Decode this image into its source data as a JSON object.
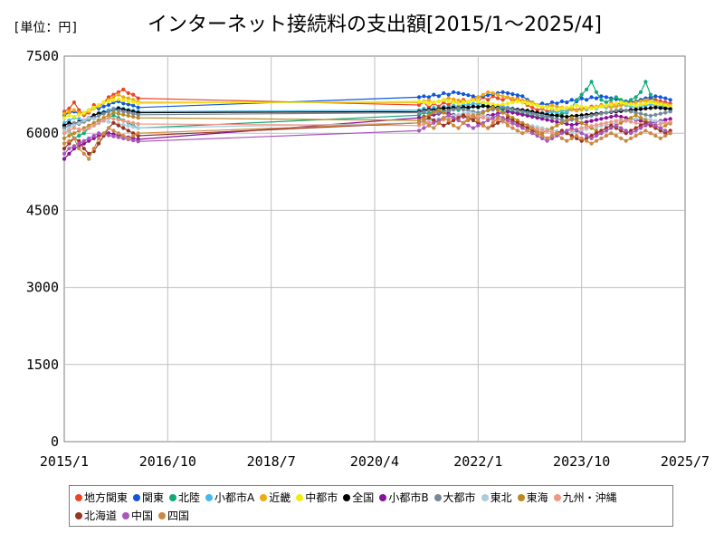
{
  "header": {
    "unit_label": "[単位：円]",
    "title": "インターネット接続料の支出額[2015/1～2025/4]"
  },
  "chart_data": {
    "type": "line",
    "title": "インターネット接続料の支出額[2015/1～2025/4]",
    "unit": "[単位：円]",
    "xlabel": "",
    "ylabel": "",
    "ylim": [
      0,
      7500
    ],
    "yticks": [
      "0",
      "1500",
      "3000",
      "4500",
      "6000",
      "7500"
    ],
    "xticks": [
      "2015/1",
      "2016/10",
      "2018/7",
      "2020/4",
      "2022/1",
      "2023/10",
      "2025/7"
    ],
    "grid": true,
    "legend_position": "bottom",
    "segments": [
      {
        "from": "2015/1",
        "to": "2016/4",
        "months": 16
      },
      {
        "from": "2021/1",
        "to": "2025/4",
        "months": 52
      }
    ],
    "series": [
      {
        "name": "地方関東",
        "color": "#ee4422",
        "seg1": [
          6420,
          6480,
          6600,
          6450,
          6350,
          6400,
          6550,
          6500,
          6600,
          6700,
          6750,
          6800,
          6850,
          6780,
          6750,
          6680
        ],
        "seg2": [
          6550,
          6600,
          6500,
          6580,
          6520,
          6600,
          6550,
          6620,
          6580,
          6650,
          6600,
          6680,
          6620,
          6700,
          6650,
          6720,
          6680,
          6650,
          6700,
          6620,
          6680,
          6600,
          6550,
          6500,
          6450,
          6480,
          6420,
          6450,
          6400,
          6450,
          6420,
          6480,
          6450,
          6500,
          6480,
          6520,
          6500,
          6550,
          6520,
          6580,
          6550,
          6600,
          6580,
          6620,
          6600,
          6650,
          6620,
          6680,
          6650,
          6620,
          6600,
          6580
        ]
      },
      {
        "name": "関東",
        "color": "#1155dd",
        "seg1": [
          6350,
          6400,
          6420,
          6380,
          6400,
          6450,
          6500,
          6480,
          6520,
          6550,
          6600,
          6620,
          6580,
          6560,
          6540,
          6500
        ],
        "seg2": [
          6700,
          6720,
          6700,
          6750,
          6720,
          6780,
          6750,
          6800,
          6780,
          6760,
          6740,
          6720,
          6700,
          6720,
          6740,
          6760,
          6780,
          6800,
          6780,
          6760,
          6740,
          6720,
          6650,
          6600,
          6550,
          6580,
          6550,
          6600,
          6580,
          6620,
          6600,
          6650,
          6620,
          6680,
          6650,
          6700,
          6680,
          6720,
          6700,
          6680,
          6660,
          6640,
          6620,
          6600,
          6620,
          6650,
          6680,
          6700,
          6720,
          6700,
          6680,
          6650
        ]
      },
      {
        "name": "北陸",
        "color": "#11aa77",
        "seg1": [
          6000,
          6050,
          5900,
          5950,
          6000,
          6100,
          6150,
          6200,
          6250,
          6300,
          6350,
          6300,
          6250,
          6200,
          6150,
          6100
        ],
        "seg2": [
          6350,
          6400,
          6380,
          6420,
          6400,
          6450,
          6420,
          6480,
          6450,
          6500,
          6480,
          6520,
          6500,
          6550,
          6520,
          6500,
          6480,
          6460,
          6440,
          6420,
          6400,
          6380,
          6360,
          6340,
          6320,
          6300,
          6320,
          6340,
          6360,
          6380,
          6400,
          6500,
          6650,
          6750,
          6850,
          7000,
          6800,
          6650,
          6600,
          6650,
          6700,
          6650,
          6600,
          6650,
          6700,
          6800,
          7000,
          6750,
          6600,
          6550,
          6500,
          6450
        ]
      },
      {
        "name": "小都市A",
        "color": "#44bbee",
        "seg1": [
          6200,
          6250,
          6300,
          6280,
          6250,
          6300,
          6350,
          6400,
          6420,
          6450,
          6480,
          6500,
          6480,
          6460,
          6440,
          6420
        ],
        "seg2": [
          6450,
          6480,
          6460,
          6500,
          6480,
          6520,
          6500,
          6540,
          6520,
          6560,
          6540,
          6580,
          6560,
          6600,
          6580,
          6560,
          6540,
          6520,
          6500,
          6480,
          6460,
          6440,
          6420,
          6400,
          6380,
          6400,
          6380,
          6420,
          6400,
          6440,
          6420,
          6460,
          6440,
          6480,
          6460,
          6500,
          6480,
          6520,
          6500,
          6540,
          6520,
          6560,
          6540,
          6520,
          6500,
          6520,
          6540,
          6560,
          6540,
          6520,
          6500,
          6480
        ]
      },
      {
        "name": "近畿",
        "color": "#eeaa11",
        "seg1": [
          6380,
          6420,
          6450,
          6400,
          6380,
          6420,
          6480,
          6520,
          6600,
          6650,
          6700,
          6750,
          6700,
          6680,
          6650,
          6600
        ],
        "seg2": [
          6600,
          6620,
          6640,
          6600,
          6620,
          6650,
          6680,
          6660,
          6640,
          6620,
          6600,
          6650,
          6700,
          6750,
          6800,
          6780,
          6750,
          6720,
          6700,
          6680,
          6660,
          6640,
          6620,
          6600,
          6550,
          6500,
          6520,
          6540,
          6520,
          6500,
          6480,
          6460,
          6440,
          6460,
          6480,
          6500,
          6520,
          6540,
          6520,
          6500,
          6520,
          6540,
          6560,
          6580,
          6600,
          6620,
          6640,
          6620,
          6600,
          6580,
          6560,
          6540
        ]
      },
      {
        "name": "中都市",
        "color": "#eeee11",
        "seg1": [
          6300,
          6350,
          6320,
          6360,
          6400,
          6450,
          6500,
          6550,
          6600,
          6620,
          6640,
          6660,
          6640,
          6620,
          6600,
          6580
        ],
        "seg2": [
          6620,
          6600,
          6580,
          6600,
          6620,
          6640,
          6620,
          6600,
          6580,
          6600,
          6620,
          6640,
          6620,
          6600,
          6580,
          6560,
          6540,
          6560,
          6580,
          6600,
          6620,
          6600,
          6580,
          6560,
          6540,
          6520,
          6500,
          6480,
          6460,
          6480,
          6500,
          6520,
          6540,
          6520,
          6500,
          6480,
          6500,
          6520,
          6540,
          6560,
          6580,
          6600,
          6580,
          6560,
          6540,
          6560,
          6580,
          6600,
          6580,
          6560,
          6540,
          6520
        ]
      },
      {
        "name": "全国",
        "color": "#000000",
        "seg1": [
          6150,
          6200,
          6180,
          6220,
          6250,
          6300,
          6350,
          6380,
          6400,
          6420,
          6450,
          6480,
          6460,
          6440,
          6420,
          6400
        ],
        "seg2": [
          6420,
          6440,
          6460,
          6450,
          6470,
          6490,
          6480,
          6500,
          6490,
          6510,
          6500,
          6520,
          6510,
          6530,
          6520,
          6510,
          6500,
          6490,
          6480,
          6470,
          6460,
          6450,
          6440,
          6420,
          6400,
          6380,
          6360,
          6350,
          6340,
          6330,
          6320,
          6330,
          6340,
          6350,
          6360,
          6370,
          6380,
          6390,
          6400,
          6410,
          6420,
          6430,
          6440,
          6450,
          6460,
          6470,
          6480,
          6490,
          6500,
          6490,
          6480,
          6470
        ]
      },
      {
        "name": "小都市B",
        "color": "#881199",
        "seg1": [
          5500,
          5600,
          5700,
          5750,
          5800,
          5850,
          5900,
          5950,
          5980,
          6000,
          5980,
          5960,
          5940,
          5920,
          5900,
          5880
        ],
        "seg2": [
          6300,
          6320,
          6340,
          6360,
          6380,
          6400,
          6380,
          6360,
          6340,
          6320,
          6300,
          6280,
          6300,
          6320,
          6340,
          6360,
          6380,
          6400,
          6420,
          6400,
          6380,
          6360,
          6340,
          6320,
          6300,
          6280,
          6260,
          6240,
          6220,
          6200,
          6180,
          6160,
          6180,
          6200,
          6220,
          6240,
          6260,
          6280,
          6300,
          6320,
          6340,
          6320,
          6300,
          6280,
          6260,
          6240,
          6220,
          6200,
          6220,
          6240,
          6260,
          6280
        ]
      },
      {
        "name": "大都市",
        "color": "#778899",
        "seg1": [
          6100,
          6150,
          6200,
          6180,
          6220,
          6260,
          6300,
          6340,
          6380,
          6420,
          6460,
          6440,
          6420,
          6400,
          6380,
          6360
        ],
        "seg2": [
          6400,
          6420,
          6440,
          6420,
          6400,
          6420,
          6440,
          6460,
          6480,
          6460,
          6440,
          6420,
          6400,
          6420,
          6440,
          6460,
          6480,
          6500,
          6480,
          6460,
          6440,
          6420,
          6400,
          6380,
          6360,
          6340,
          6320,
          6300,
          6280,
          6260,
          6240,
          6260,
          6280,
          6300,
          6320,
          6340,
          6360,
          6380,
          6400,
          6420,
          6440,
          6460,
          6440,
          6420,
          6400,
          6380,
          6360,
          6340,
          6360,
          6380,
          6400,
          6420
        ]
      },
      {
        "name": "東北",
        "color": "#aaccdd",
        "seg1": [
          6050,
          6100,
          6150,
          6200,
          6250,
          6300,
          6280,
          6260,
          6240,
          6220,
          6200,
          6180,
          6160,
          6140,
          6120,
          6100
        ],
        "seg2": [
          6200,
          6220,
          6240,
          6260,
          6280,
          6300,
          6320,
          6340,
          6360,
          6380,
          6400,
          6380,
          6360,
          6340,
          6320,
          6300,
          6280,
          6260,
          6240,
          6220,
          6200,
          6180,
          6160,
          6140,
          6120,
          6100,
          6080,
          6060,
          6040,
          6020,
          6000,
          6020,
          6040,
          6060,
          6080,
          6100,
          6120,
          6140,
          6160,
          6180,
          6200,
          6220,
          6240,
          6260,
          6280,
          6300,
          6280,
          6260,
          6240,
          6220,
          6200,
          6180
        ]
      },
      {
        "name": "東海",
        "color": "#bb8822",
        "seg1": [
          5900,
          5950,
          6000,
          6050,
          6100,
          6150,
          6200,
          6250,
          6300,
          6350,
          6400,
          6380,
          6360,
          6340,
          6320,
          6300
        ],
        "seg2": [
          6250,
          6300,
          6350,
          6400,
          6450,
          6400,
          6350,
          6300,
          6250,
          6200,
          6250,
          6300,
          6350,
          6400,
          6450,
          6500,
          6450,
          6400,
          6350,
          6300,
          6250,
          6200,
          6150,
          6100,
          6050,
          6000,
          6050,
          6100,
          6150,
          6200,
          6250,
          6300,
          6250,
          6200,
          6150,
          6100,
          6050,
          6000,
          6050,
          6100,
          6150,
          6200,
          6250,
          6300,
          6350,
          6300,
          6250,
          6200,
          6150,
          6100,
          6150,
          6200
        ]
      },
      {
        "name": "九州・沖縄",
        "color": "#ee9988",
        "seg1": [
          6000,
          6050,
          6100,
          6080,
          6060,
          6100,
          6150,
          6200,
          6250,
          6300,
          6280,
          6260,
          6240,
          6220,
          6200,
          6180
        ],
        "seg2": [
          6150,
          6180,
          6200,
          6220,
          6240,
          6260,
          6280,
          6300,
          6320,
          6340,
          6360,
          6340,
          6320,
          6300,
          6280,
          6260,
          6240,
          6220,
          6200,
          6180,
          6160,
          6140,
          6120,
          6100,
          6080,
          6060,
          6040,
          6020,
          6000,
          6020,
          6040,
          6060,
          6080,
          6100,
          6120,
          6140,
          6160,
          6180,
          6200,
          6220,
          6240,
          6260,
          6240,
          6220,
          6200,
          6180,
          6160,
          6140,
          6160,
          6180,
          6200,
          6220
        ]
      },
      {
        "name": "北海道",
        "color": "#993322",
        "seg1": [
          5700,
          5800,
          5900,
          5850,
          5700,
          5600,
          5650,
          5800,
          5950,
          6100,
          6200,
          6150,
          6100,
          6050,
          6000,
          5950
        ],
        "seg2": [
          6200,
          6250,
          6300,
          6250,
          6200,
          6150,
          6200,
          6250,
          6300,
          6350,
          6300,
          6250,
          6200,
          6150,
          6100,
          6150,
          6200,
          6250,
          6300,
          6250,
          6200,
          6150,
          6100,
          6050,
          6000,
          5950,
          5900,
          5950,
          6000,
          6050,
          6000,
          5950,
          5900,
          5850,
          5900,
          5950,
          6000,
          6050,
          6100,
          6150,
          6100,
          6050,
          6000,
          6050,
          6100,
          6150,
          6200,
          6150,
          6100,
          6050,
          6000,
          6050
        ]
      },
      {
        "name": "中国",
        "color": "#aa55bb",
        "seg1": [
          5600,
          5700,
          5750,
          5800,
          5850,
          5900,
          5950,
          6000,
          5980,
          5960,
          5940,
          5920,
          5900,
          5880,
          5860,
          5840
        ],
        "seg2": [
          6050,
          6100,
          6150,
          6200,
          6250,
          6300,
          6350,
          6300,
          6250,
          6200,
          6150,
          6100,
          6150,
          6200,
          6250,
          6300,
          6350,
          6300,
          6250,
          6200,
          6150,
          6100,
          6050,
          6000,
          5950,
          5900,
          5850,
          5900,
          5950,
          6000,
          6050,
          6100,
          6050,
          6000,
          5950,
          5900,
          5950,
          6000,
          6050,
          6100,
          6150,
          6100,
          6050,
          6000,
          6050,
          6100,
          6150,
          6200,
          6150,
          6100,
          6050,
          6000
        ]
      },
      {
        "name": "四国",
        "color": "#cc8844",
        "seg1": [
          5800,
          5850,
          5900,
          5700,
          5600,
          5500,
          5700,
          5900,
          6000,
          6100,
          6050,
          6000,
          5950,
          5900,
          5950,
          6000
        ],
        "seg2": [
          6200,
          6250,
          6150,
          6100,
          6200,
          6300,
          6250,
          6150,
          6100,
          6200,
          6300,
          6350,
          6250,
          6150,
          6100,
          6200,
          6300,
          6250,
          6150,
          6100,
          6050,
          6000,
          6050,
          6100,
          6000,
          5950,
          5900,
          5950,
          6000,
          5900,
          5850,
          5900,
          5950,
          5900,
          5850,
          5800,
          5850,
          5900,
          5950,
          6000,
          5950,
          5900,
          5850,
          5900,
          5950,
          6000,
          6050,
          6000,
          5950,
          5900,
          5950,
          6000
        ]
      }
    ]
  }
}
